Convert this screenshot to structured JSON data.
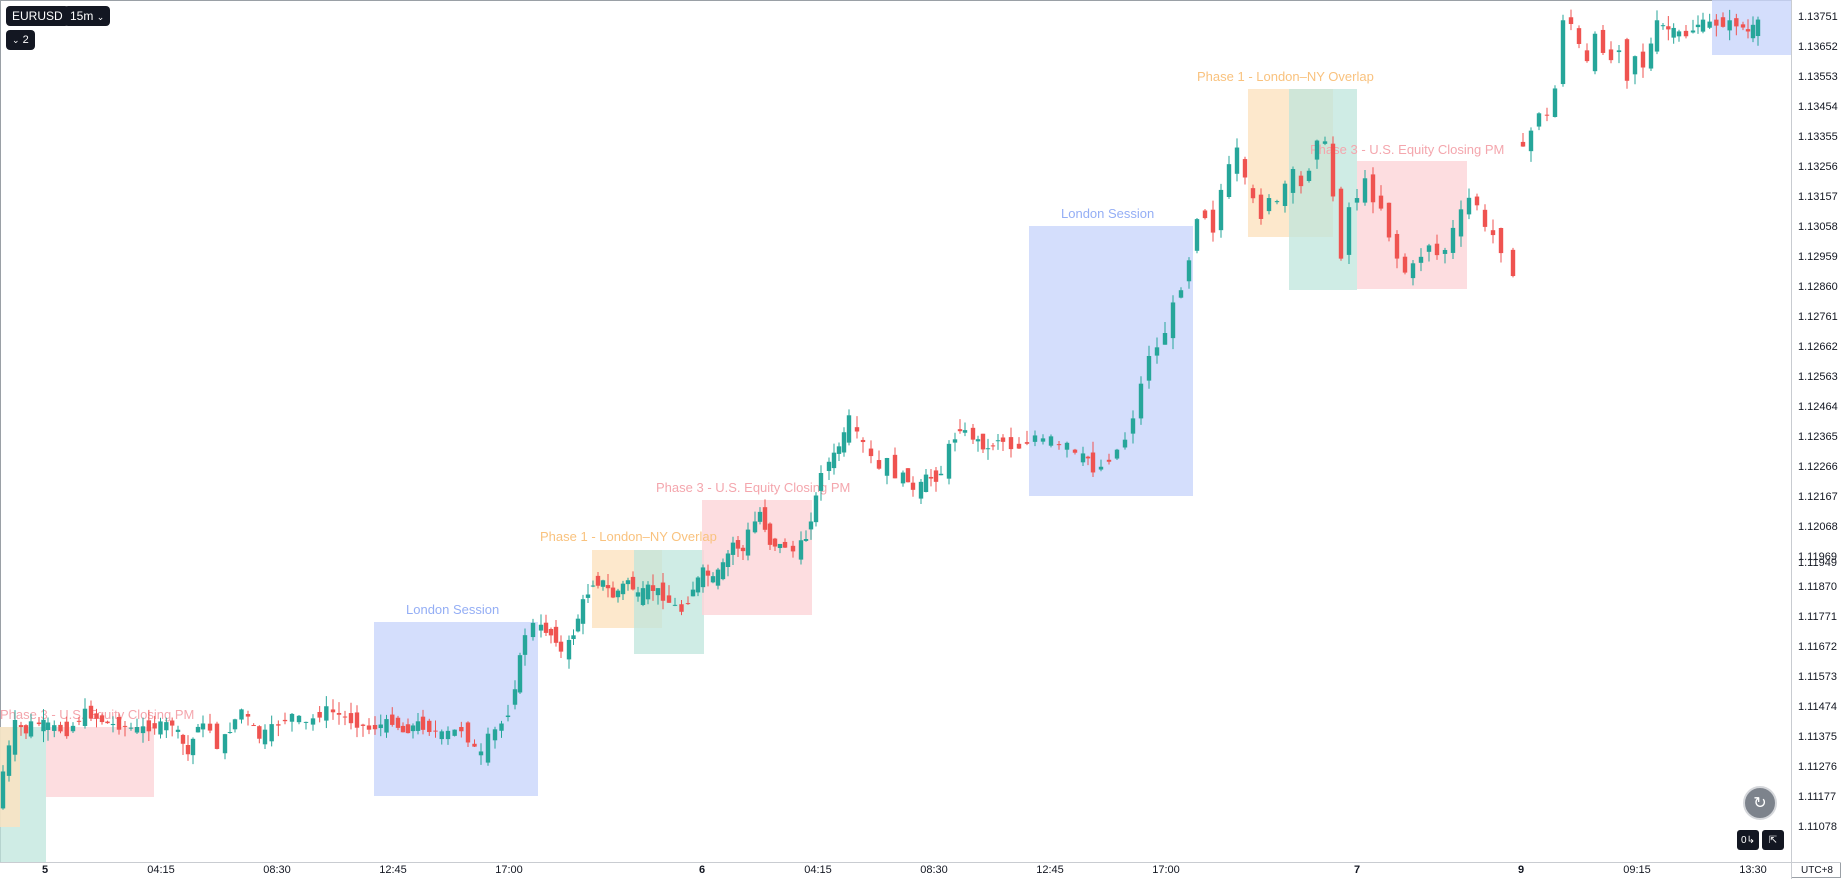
{
  "symbol": "EURUSD",
  "interval": "15m",
  "indicator_toggle": {
    "icon": "chevron-down-icon",
    "count": "2"
  },
  "timezone": "UTC+8",
  "colors": {
    "up": "#26a69a",
    "down": "#ef5350",
    "london": "#c9d6fb",
    "overlap": "#fde2bf",
    "phase2": "#bfe5dc",
    "phase3": "#fcd4d8"
  },
  "y_ticks": [
    "1.13751",
    "1.13652",
    "1.13553",
    "1.13454",
    "1.13355",
    "1.13256",
    "1.13157",
    "1.13058",
    "1.12959",
    "1.12860",
    "1.12761",
    "1.12662",
    "1.12563",
    "1.12464",
    "1.12365",
    "1.12266",
    "1.12167",
    "1.12068",
    "1.11969",
    "1.11949",
    "1.11870",
    "1.11771",
    "1.11672",
    "1.11573",
    "1.11474",
    "1.11375",
    "1.11276",
    "1.11177",
    "1.11078"
  ],
  "x_ticks": [
    {
      "label": "5",
      "bold": true
    },
    {
      "label": "04:15",
      "bold": false
    },
    {
      "label": "08:30",
      "bold": false
    },
    {
      "label": "12:45",
      "bold": false
    },
    {
      "label": "17:00",
      "bold": false
    },
    {
      "label": "6",
      "bold": true
    },
    {
      "label": "04:15",
      "bold": false
    },
    {
      "label": "08:30",
      "bold": false
    },
    {
      "label": "12:45",
      "bold": false
    },
    {
      "label": "17:00",
      "bold": false
    },
    {
      "label": "7",
      "bold": true
    },
    {
      "label": "9",
      "bold": true
    },
    {
      "label": "09:15",
      "bold": false
    },
    {
      "label": "13:30",
      "bold": false
    }
  ],
  "session_labels": {
    "london": "London Session",
    "phase1": "Phase 1 - London–NY Overlap",
    "phase3": "Phase 3 - U.S. Equity Closing PM"
  },
  "chart_data": {
    "type": "candlestick",
    "ylim": [
      1.1098,
      1.1385
    ],
    "segments": [
      {
        "day": "5",
        "points": [
          [
            0,
            1.1105
          ],
          [
            6,
            1.1118
          ],
          [
            18,
            1.1135
          ],
          [
            28,
            1.1132
          ],
          [
            36,
            1.1135
          ],
          [
            45,
            1.1135
          ],
          [
            70,
            1.1132
          ],
          [
            88,
            1.1139
          ],
          [
            110,
            1.1135
          ],
          [
            140,
            1.1133
          ],
          [
            175,
            1.1135
          ],
          [
            190,
            1.1124
          ],
          [
            200,
            1.1135
          ],
          [
            214,
            1.1133
          ]
        ]
      },
      {
        "day": "5b",
        "points": [
          [
            214,
            1.1133
          ],
          [
            222,
            1.1127
          ],
          [
            232,
            1.1133
          ],
          [
            245,
            1.114
          ],
          [
            262,
            1.113
          ],
          [
            282,
            1.1135
          ],
          [
            296,
            1.1138
          ],
          [
            310,
            1.1135
          ],
          [
            330,
            1.114
          ],
          [
            348,
            1.1137
          ],
          [
            372,
            1.1133
          ],
          [
            395,
            1.1136
          ],
          [
            405,
            1.1132
          ],
          [
            420,
            1.1135
          ],
          [
            445,
            1.1131
          ],
          [
            465,
            1.1133
          ],
          [
            478,
            1.1126
          ],
          [
            485,
            1.1124
          ],
          [
            492,
            1.113
          ],
          [
            505,
            1.1135
          ],
          [
            512,
            1.1139
          ],
          [
            522,
            1.1158
          ],
          [
            530,
            1.1167
          ],
          [
            538,
            1.117
          ],
          [
            548,
            1.1168
          ],
          [
            558,
            1.1165
          ],
          [
            566,
            1.116
          ],
          [
            575,
            1.1167
          ],
          [
            585,
            1.1178
          ],
          [
            595,
            1.1185
          ],
          [
            605,
            1.1185
          ],
          [
            615,
            1.118
          ],
          [
            630,
            1.1186
          ],
          [
            640,
            1.118
          ],
          [
            650,
            1.1183
          ],
          [
            660,
            1.1182
          ],
          [
            672,
            1.1178
          ],
          [
            685,
            1.1175
          ],
          [
            695,
            1.1183
          ],
          [
            705,
            1.1189
          ],
          [
            715,
            1.1186
          ],
          [
            725,
            1.1191
          ],
          [
            735,
            1.1199
          ],
          [
            745,
            1.1196
          ],
          [
            752,
            1.1203
          ],
          [
            762,
            1.121
          ],
          [
            772,
            1.1199
          ],
          [
            782,
            1.1198
          ],
          [
            790,
            1.1198
          ],
          [
            798,
            1.1196
          ],
          [
            808,
            1.1201
          ],
          [
            818,
            1.1215
          ],
          [
            826,
            1.1225
          ],
          [
            836,
            1.123
          ],
          [
            846,
            1.1237
          ],
          [
            854,
            1.1243
          ],
          [
            860,
            1.1237
          ],
          [
            868,
            1.1234
          ],
          [
            876,
            1.1229
          ],
          [
            884,
            1.1225
          ],
          [
            892,
            1.1228
          ],
          [
            900,
            1.1223
          ],
          [
            910,
            1.1222
          ],
          [
            918,
            1.1217
          ],
          [
            928,
            1.1222
          ],
          [
            938,
            1.1222
          ],
          [
            946,
            1.1224
          ],
          [
            952,
            1.1233
          ],
          [
            962,
            1.124
          ],
          [
            970,
            1.1238
          ],
          [
            980,
            1.1235
          ],
          [
            990,
            1.1232
          ],
          [
            1000,
            1.1236
          ],
          [
            1008,
            1.1235
          ],
          [
            1016,
            1.1233
          ],
          [
            1024,
            1.1233
          ],
          [
            1032,
            1.1235
          ],
          [
            1040,
            1.1237
          ],
          [
            1048,
            1.1235
          ],
          [
            1056,
            1.1236
          ],
          [
            1064,
            1.1233
          ],
          [
            1072,
            1.1234
          ],
          [
            1080,
            1.123
          ],
          [
            1090,
            1.1229
          ],
          [
            1098,
            1.1225
          ],
          [
            1106,
            1.1226
          ],
          [
            1114,
            1.1229
          ],
          [
            1122,
            1.1232
          ],
          [
            1130,
            1.1236
          ],
          [
            1138,
            1.1244
          ],
          [
            1146,
            1.1255
          ],
          [
            1154,
            1.1266
          ],
          [
            1162,
            1.1268
          ],
          [
            1170,
            1.1274
          ],
          [
            1178,
            1.1283
          ],
          [
            1186,
            1.129
          ],
          [
            1194,
            1.13
          ],
          [
            1202,
            1.1315
          ],
          [
            1210,
            1.1315
          ],
          [
            1218,
            1.131
          ],
          [
            1226,
            1.1324
          ],
          [
            1234,
            1.1332
          ],
          [
            1242,
            1.1338
          ],
          [
            1250,
            1.1327
          ],
          [
            1258,
            1.132
          ],
          [
            1266,
            1.1315
          ],
          [
            1274,
            1.1322
          ],
          [
            1282,
            1.1319
          ],
          [
            1290,
            1.1326
          ],
          [
            1298,
            1.133
          ],
          [
            1306,
            1.1325
          ],
          [
            1314,
            1.1332
          ],
          [
            1322,
            1.1343
          ],
          [
            1330,
            1.134
          ],
          [
            1338,
            1.1322
          ],
          [
            1346,
            1.1301
          ],
          [
            1354,
            1.1318
          ],
          [
            1362,
            1.1322
          ],
          [
            1370,
            1.1327
          ],
          [
            1378,
            1.1321
          ],
          [
            1386,
            1.1318
          ],
          [
            1394,
            1.1308
          ],
          [
            1402,
            1.13
          ],
          [
            1410,
            1.1295
          ],
          [
            1418,
            1.1297
          ],
          [
            1426,
            1.1301
          ],
          [
            1434,
            1.1305
          ],
          [
            1442,
            1.1301
          ],
          [
            1450,
            1.1303
          ],
          [
            1458,
            1.131
          ],
          [
            1466,
            1.1316
          ],
          [
            1474,
            1.1321
          ],
          [
            1482,
            1.1319
          ],
          [
            1490,
            1.131
          ],
          [
            1498,
            1.1308
          ],
          [
            1506,
            1.1303
          ]
        ]
      },
      {
        "day": "gap",
        "points": [
          [
            1510,
            1.13
          ],
          [
            1514,
            1.1295
          ]
        ]
      },
      {
        "day": "9",
        "points": [
          [
            1520,
            1.1344
          ],
          [
            1528,
            1.1338
          ],
          [
            1536,
            1.1345
          ],
          [
            1544,
            1.1352
          ],
          [
            1552,
            1.135
          ],
          [
            1560,
            1.136
          ],
          [
            1568,
            1.1385
          ],
          [
            1576,
            1.1383
          ],
          [
            1584,
            1.1375
          ],
          [
            1592,
            1.1369
          ],
          [
            1600,
            1.1378
          ],
          [
            1608,
            1.1374
          ],
          [
            1616,
            1.137
          ],
          [
            1624,
            1.1375
          ],
          [
            1632,
            1.1364
          ],
          [
            1640,
            1.1372
          ],
          [
            1648,
            1.1368
          ],
          [
            1660,
            1.1383
          ],
          [
            1676,
            1.138
          ],
          [
            1690,
            1.1379
          ],
          [
            1700,
            1.1383
          ],
          [
            1720,
            1.1383
          ],
          [
            1740,
            1.1383
          ],
          [
            1750,
            1.138
          ],
          [
            1760,
            1.1383
          ]
        ]
      }
    ]
  }
}
